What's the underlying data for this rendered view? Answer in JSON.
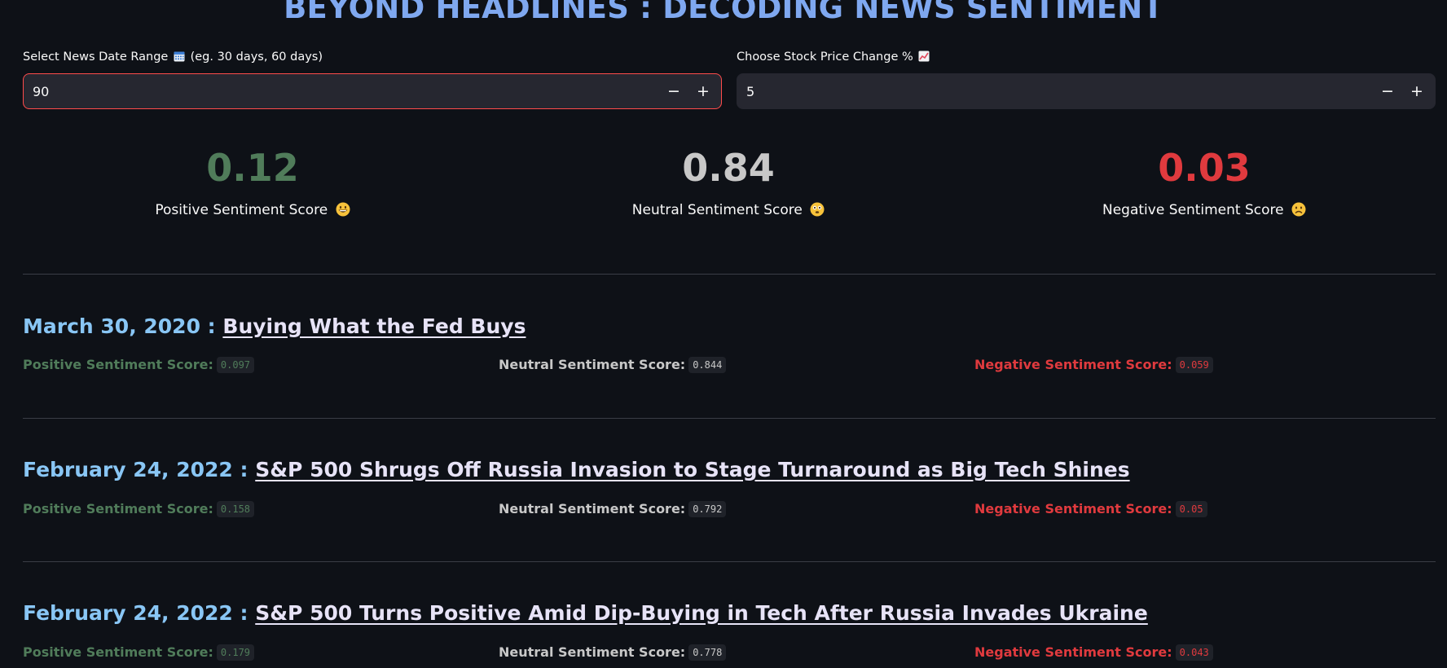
{
  "app": {
    "title": "BEYOND HEADLINES : DECODING NEWS SENTIMENT"
  },
  "inputs": {
    "date_range": {
      "label": "Select News Date Range",
      "hint": "(eg. 30 days, 60 days)",
      "icon": "calendar-icon",
      "value": "90"
    },
    "price_change": {
      "label": "Choose Stock Price Change %",
      "icon": "chart-increasing-icon",
      "value": "5"
    },
    "minus_label": "−",
    "plus_label": "+"
  },
  "metrics": {
    "positive": {
      "value": "0.12",
      "caption": "Positive Sentiment Score",
      "emoji": "grinning-face-icon",
      "color": "#507c5a"
    },
    "neutral": {
      "value": "0.84",
      "caption": "Neutral Sentiment Score",
      "emoji": "flushed-face-icon",
      "color": "#c8c8c8"
    },
    "negative": {
      "value": "0.03",
      "caption": "Negative Sentiment Score",
      "emoji": "frowning-face-icon",
      "color": "#e03a3e"
    }
  },
  "score_labels": {
    "positive": "Positive Sentiment Score:",
    "neutral": "Neutral Sentiment Score:",
    "negative": "Negative Sentiment Score:"
  },
  "articles": [
    {
      "date": "March 30, 2020 :",
      "headline": "Buying What the Fed Buys",
      "positive": "0.097",
      "neutral": "0.844",
      "negative": "0.059"
    },
    {
      "date": "February 24, 2022 :",
      "headline": "S&P 500 Shrugs Off Russia Invasion to Stage Turnaround as Big Tech Shines",
      "positive": "0.158",
      "neutral": "0.792",
      "negative": "0.05"
    },
    {
      "date": "February 24, 2022 :",
      "headline": "S&P 500 Turns Positive Amid Dip-Buying in Tech After Russia Invades Ukraine",
      "positive": "0.179",
      "neutral": "0.778",
      "negative": "0.043"
    }
  ]
}
